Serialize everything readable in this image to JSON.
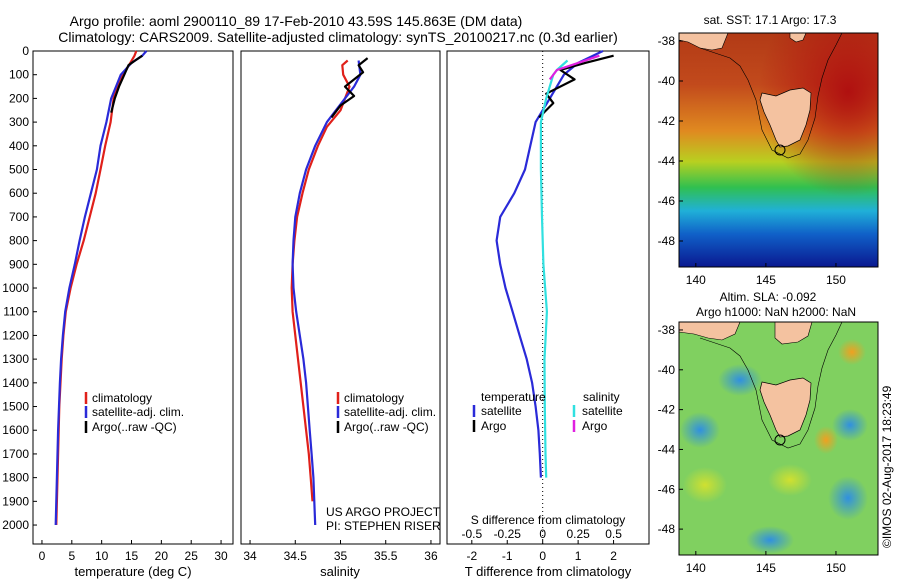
{
  "header": {
    "title_line1": "Argo profile: aoml 2900110_89 17-Feb-2010 43.59S 145.863E (DM data)",
    "title_line2": "Climatology: CARS2009. Satellite-adjusted climatology: synTS_20100217.nc (0.3d earlier)"
  },
  "colors": {
    "climatology": "#e0201a",
    "satellite": "#2a2ad8",
    "argo": "#000000",
    "sal_satellite": "#30e0e0",
    "sal_argo": "#e020e0"
  },
  "chart_data": [
    {
      "type": "line",
      "id": "temperature",
      "xlabel": "temperature (deg C)",
      "xlim": [
        -1.5,
        32
      ],
      "xticks": [
        0,
        5,
        10,
        15,
        20,
        25,
        30
      ],
      "ylim": [
        0,
        2080
      ],
      "yticks": [
        0,
        100,
        200,
        300,
        400,
        500,
        600,
        700,
        800,
        900,
        1000,
        1100,
        1200,
        1300,
        1400,
        1500,
        1600,
        1700,
        1800,
        1900,
        2000
      ],
      "legend": [
        "climatology",
        "satellite-adj. clim.",
        "Argo(..raw -QC)"
      ],
      "series": [
        {
          "name": "climatology",
          "color": "#e0201a",
          "points": [
            [
              15.8,
              0
            ],
            [
              15.5,
              20
            ],
            [
              14.8,
              50
            ],
            [
              13.6,
              100
            ],
            [
              12.6,
              150
            ],
            [
              12.0,
              200
            ],
            [
              11.5,
              300
            ],
            [
              10.6,
              400
            ],
            [
              9.8,
              500
            ],
            [
              9.0,
              600
            ],
            [
              8.0,
              700
            ],
            [
              7.0,
              800
            ],
            [
              5.8,
              900
            ],
            [
              4.8,
              1000
            ],
            [
              4.0,
              1100
            ],
            [
              3.6,
              1200
            ],
            [
              3.3,
              1300
            ],
            [
              3.1,
              1400
            ],
            [
              2.9,
              1500
            ],
            [
              2.8,
              1600
            ],
            [
              2.7,
              1700
            ],
            [
              2.6,
              1800
            ],
            [
              2.5,
              1900
            ],
            [
              2.4,
              2000
            ]
          ]
        },
        {
          "name": "satellite-adj. clim.",
          "color": "#2a2ad8",
          "points": [
            [
              17.5,
              0
            ],
            [
              16.8,
              20
            ],
            [
              15.0,
              50
            ],
            [
              13.2,
              100
            ],
            [
              12.4,
              150
            ],
            [
              11.6,
              200
            ],
            [
              10.8,
              300
            ],
            [
              9.8,
              400
            ],
            [
              9.2,
              500
            ],
            [
              8.2,
              600
            ],
            [
              7.2,
              700
            ],
            [
              6.3,
              800
            ],
            [
              5.5,
              900
            ],
            [
              4.6,
              1000
            ],
            [
              3.9,
              1100
            ],
            [
              3.5,
              1200
            ],
            [
              3.2,
              1300
            ],
            [
              3.0,
              1400
            ],
            [
              2.85,
              1500
            ],
            [
              2.7,
              1600
            ],
            [
              2.6,
              1700
            ],
            [
              2.5,
              1800
            ],
            [
              2.4,
              1900
            ],
            [
              2.3,
              2000
            ]
          ]
        },
        {
          "name": "Argo(..raw -QC)",
          "color": "#000000",
          "points": [
            [
              16.8,
              20
            ],
            [
              15.6,
              40
            ],
            [
              14.5,
              60
            ],
            [
              13.8,
              100
            ],
            [
              12.9,
              150
            ],
            [
              12.2,
              200
            ],
            [
              11.6,
              260
            ]
          ]
        }
      ]
    },
    {
      "type": "line",
      "id": "salinity",
      "xlabel": "salinity",
      "xlim": [
        33.9,
        36.1
      ],
      "xticks": [
        34,
        34.5,
        35,
        35.5,
        36
      ],
      "ylim": [
        0,
        2080
      ],
      "legend": [
        "climatology",
        "satellite-adj. clim.",
        "Argo(..raw -QC)"
      ],
      "annotations": [
        "US ARGO PROJECT",
        "PI: STEPHEN RISER"
      ],
      "series": [
        {
          "name": "climatology",
          "color": "#e0201a",
          "points": [
            [
              35.08,
              40
            ],
            [
              35.02,
              60
            ],
            [
              35.03,
              100
            ],
            [
              35.1,
              150
            ],
            [
              35.0,
              250
            ],
            [
              34.85,
              320
            ],
            [
              34.75,
              400
            ],
            [
              34.65,
              500
            ],
            [
              34.58,
              600
            ],
            [
              34.52,
              700
            ],
            [
              34.49,
              800
            ],
            [
              34.47,
              900
            ],
            [
              34.46,
              1000
            ],
            [
              34.47,
              1100
            ],
            [
              34.5,
              1200
            ],
            [
              34.53,
              1300
            ],
            [
              34.56,
              1400
            ],
            [
              34.59,
              1500
            ],
            [
              34.62,
              1600
            ],
            [
              34.65,
              1700
            ],
            [
              34.67,
              1800
            ],
            [
              34.69,
              1900
            ]
          ]
        },
        {
          "name": "satellite-adj. clim.",
          "color": "#2a2ad8",
          "points": [
            [
              35.2,
              40
            ],
            [
              35.22,
              100
            ],
            [
              35.15,
              150
            ],
            [
              35.05,
              200
            ],
            [
              34.85,
              300
            ],
            [
              34.72,
              400
            ],
            [
              34.62,
              500
            ],
            [
              34.55,
              600
            ],
            [
              34.5,
              700
            ],
            [
              34.48,
              800
            ],
            [
              34.47,
              900
            ],
            [
              34.48,
              1000
            ],
            [
              34.51,
              1100
            ],
            [
              34.55,
              1200
            ],
            [
              34.59,
              1300
            ],
            [
              34.62,
              1400
            ],
            [
              34.64,
              1500
            ],
            [
              34.66,
              1600
            ],
            [
              34.68,
              1700
            ],
            [
              34.7,
              1800
            ],
            [
              34.71,
              1900
            ],
            [
              34.72,
              2000
            ]
          ]
        },
        {
          "name": "Argo(..raw -QC)",
          "color": "#000000",
          "points": [
            [
              35.3,
              30
            ],
            [
              35.2,
              60
            ],
            [
              35.25,
              90
            ],
            [
              35.05,
              150
            ],
            [
              35.15,
              190
            ],
            [
              35.0,
              230
            ],
            [
              34.9,
              280
            ]
          ]
        }
      ]
    },
    {
      "type": "line",
      "id": "difference",
      "xlabel": "T difference from climatology",
      "xlabel_top": "S difference from climatology",
      "xlim": [
        -2.7,
        3.0
      ],
      "xticks": [
        -2,
        -1,
        0,
        1,
        2
      ],
      "xticks_top": [
        "-0.5",
        "-0.25",
        "0",
        "0.25",
        "0.5"
      ],
      "ylim": [
        0,
        2080
      ],
      "legend_groups": [
        {
          "title": "temperature",
          "items": [
            "satellite",
            "Argo"
          ]
        },
        {
          "title": "salinity",
          "items": [
            "satellite",
            "Argo"
          ]
        }
      ],
      "series": [
        {
          "name": "T satellite",
          "color": "#2a2ad8",
          "points": [
            [
              1.7,
              0
            ],
            [
              1.0,
              50
            ],
            [
              0.6,
              100
            ],
            [
              0.2,
              200
            ],
            [
              -0.2,
              300
            ],
            [
              -0.35,
              400
            ],
            [
              -0.5,
              500
            ],
            [
              -0.8,
              600
            ],
            [
              -1.2,
              700
            ],
            [
              -1.3,
              800
            ],
            [
              -1.2,
              900
            ],
            [
              -1.05,
              1000
            ],
            [
              -0.85,
              1100
            ],
            [
              -0.65,
              1200
            ],
            [
              -0.45,
              1300
            ],
            [
              -0.3,
              1400
            ],
            [
              -0.2,
              1500
            ],
            [
              -0.12,
              1600
            ],
            [
              -0.08,
              1700
            ],
            [
              -0.05,
              1800
            ]
          ]
        },
        {
          "name": "T Argo",
          "color": "#000000",
          "points": [
            [
              2.0,
              20
            ],
            [
              1.2,
              50
            ],
            [
              0.5,
              80
            ],
            [
              0.9,
              120
            ],
            [
              0.1,
              180
            ],
            [
              0.3,
              220
            ],
            [
              -0.1,
              280
            ]
          ]
        },
        {
          "name": "S satellite",
          "color": "#30e0e0",
          "points": [
            [
              0.7,
              40
            ],
            [
              0.4,
              80
            ],
            [
              0.3,
              100
            ],
            [
              0.1,
              200
            ],
            [
              -0.05,
              300
            ],
            [
              -0.05,
              500
            ],
            [
              -0.02,
              700
            ],
            [
              0.02,
              900
            ],
            [
              0.12,
              1100
            ],
            [
              0.05,
              1300
            ],
            [
              0.06,
              1500
            ],
            [
              0.08,
              1700
            ],
            [
              0.1,
              1800
            ]
          ]
        },
        {
          "name": "S Argo",
          "color": "#e020e0",
          "points": [
            [
              1.6,
              20
            ],
            [
              1.0,
              50
            ],
            [
              0.4,
              80
            ],
            [
              0.2,
              120
            ]
          ]
        }
      ]
    }
  ],
  "maps": [
    {
      "id": "sst",
      "title": "sat. SST: 17.1  Argo: 17.3",
      "yticks": [
        "-38",
        "-40",
        "-42",
        "-44",
        "-46",
        "-48"
      ],
      "xticks": [
        "140",
        "145",
        "150"
      ]
    },
    {
      "id": "sla",
      "title_line1": "Altim. SLA: -0.092",
      "title_line2": "Argo h1000: NaN h2000: NaN",
      "yticks": [
        "-38",
        "-40",
        "-42",
        "-44",
        "-46",
        "-48"
      ],
      "xticks": [
        "140",
        "145",
        "150"
      ]
    }
  ],
  "footer": {
    "credit": "©IMOS 02-Aug-2017 18:23:49"
  }
}
